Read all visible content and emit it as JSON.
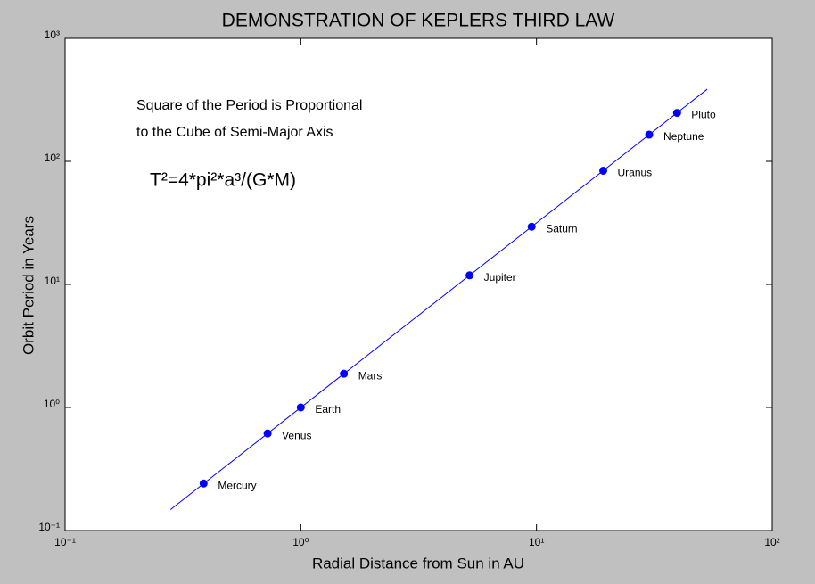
{
  "chart_data": {
    "type": "scatter",
    "title": "DEMONSTRATION OF KEPLERS THIRD LAW",
    "x_label": "Radial Distance from Sun in AU",
    "y_label": "Orbit Period in Years",
    "annotations": [
      "Square of the Period is Proportional",
      "to the Cube of Semi-Major Axis",
      "T²=4*pi²*a³/(G*M)"
    ],
    "log_x": true,
    "log_y": true,
    "xlim": [
      0.1,
      100
    ],
    "ylim": [
      0.1,
      1000
    ],
    "xticks": [
      {
        "value": 0.1,
        "label": "10⁻¹"
      },
      {
        "value": 1,
        "label": "10⁰"
      },
      {
        "value": 10,
        "label": "10¹"
      },
      {
        "value": 100,
        "label": "10²"
      }
    ],
    "yticks": [
      {
        "value": 0.1,
        "label": "10⁻¹"
      },
      {
        "value": 1,
        "label": "10⁰"
      },
      {
        "value": 10,
        "label": "10¹"
      },
      {
        "value": 100,
        "label": "10²"
      },
      {
        "value": 1000,
        "label": "10³"
      }
    ],
    "series": [
      {
        "type": "scatter",
        "color": "#0000ff",
        "labels": [
          "Mercury",
          "Venus",
          "Earth",
          "Mars",
          "Jupiter",
          "Saturn",
          "Uranus",
          "Neptune",
          "Pluto"
        ],
        "x": [
          0.387,
          0.723,
          1,
          1.524,
          5.203,
          9.537,
          19.19,
          30.07,
          39.48
        ],
        "values": [
          0.241,
          0.615,
          1,
          1.881,
          11.86,
          29.46,
          84.01,
          164.8,
          248
        ]
      },
      {
        "type": "line",
        "color": "#0000ff",
        "x": [
          0.28,
          53
        ],
        "values": [
          0.148,
          386
        ]
      }
    ]
  }
}
